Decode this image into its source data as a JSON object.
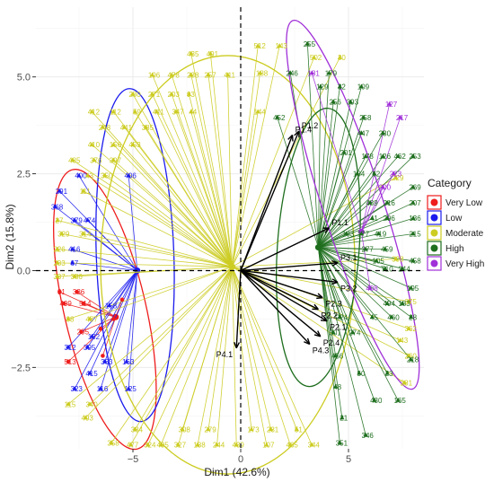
{
  "chart_data": {
    "type": "scatter",
    "subtype": "pca-biplot",
    "title": "",
    "xlabel": "Dim1 (42.6%)",
    "ylabel": "Dim2 (15.8%)",
    "xlim": [
      -9.5,
      8.5
    ],
    "ylim": [
      -4.6,
      6.8
    ],
    "x_ticks": [
      -5,
      0,
      5
    ],
    "y_ticks": [
      -2.5,
      0.0,
      2.5,
      5.0
    ],
    "x_tick_labels": [
      "−5",
      "0",
      "5"
    ],
    "y_tick_labels": [
      "−2.5",
      "0.0",
      "2.5",
      "5.0"
    ],
    "grid": true,
    "origin_lines": "dashed",
    "legend": {
      "title": "Category",
      "position": "right",
      "entries": [
        {
          "name": "Very Low",
          "color": "#ee1c1c"
        },
        {
          "name": "Low",
          "color": "#1a1aee"
        },
        {
          "name": "Moderate",
          "color": "#cccc22"
        },
        {
          "name": "High",
          "color": "#1e6e1e"
        },
        {
          "name": "Very High",
          "color": "#a030d8"
        }
      ]
    },
    "groups": [
      {
        "name": "Very Low",
        "color": "#ee1c1c",
        "centroid": [
          -5.8,
          -1.2
        ],
        "ellipse": {
          "cx": -6.3,
          "cy": -1.0,
          "rx": 1.9,
          "ry": 3.7,
          "angle": 13
        },
        "points": [
          {
            "label": "91",
            "x": -8.4,
            "y": -0.55
          },
          {
            "label": "336",
            "x": -7.6,
            "y": -0.55
          },
          {
            "label": "499",
            "x": -8.2,
            "y": -0.85
          },
          {
            "label": "514",
            "x": -7.3,
            "y": -0.85
          },
          {
            "label": "295",
            "x": -7.4,
            "y": -1.58
          },
          {
            "label": "513",
            "x": -8.0,
            "y": -2.35
          },
          {
            "label": "",
            "x": -5.9,
            "y": -1.25
          },
          {
            "label": "",
            "x": -5.5,
            "y": -0.75
          },
          {
            "label": "",
            "x": -6.5,
            "y": -1.5
          },
          {
            "label": "",
            "x": -6.4,
            "y": -2.2
          }
        ]
      },
      {
        "name": "Low",
        "color": "#1a1aee",
        "centroid": [
          -4.8,
          0.0
        ],
        "ellipse": {
          "cx": -4.9,
          "cy": 0.4,
          "rx": 1.8,
          "ry": 4.3,
          "angle": 2
        },
        "points": [
          {
            "label": "400",
            "x": -7.5,
            "y": 2.45
          },
          {
            "label": "406",
            "x": -5.2,
            "y": 2.45
          },
          {
            "label": "291",
            "x": -8.4,
            "y": 2.05
          },
          {
            "label": "368",
            "x": -8.6,
            "y": 1.65
          },
          {
            "label": "379",
            "x": -7.7,
            "y": 1.3
          },
          {
            "label": "474",
            "x": -7.1,
            "y": 1.3
          },
          {
            "label": "416",
            "x": -7.8,
            "y": 0.55
          },
          {
            "label": "67",
            "x": -7.8,
            "y": 0.2
          },
          {
            "label": "158",
            "x": -6.1,
            "y": -0.9
          },
          {
            "label": "132",
            "x": -6.9,
            "y": -1.7
          },
          {
            "label": "312",
            "x": -8.0,
            "y": -1.98
          },
          {
            "label": "395",
            "x": -7.1,
            "y": -1.98
          },
          {
            "label": "363",
            "x": -6.3,
            "y": -2.35
          },
          {
            "label": "163",
            "x": -5.3,
            "y": -2.35
          },
          {
            "label": "415",
            "x": -7.0,
            "y": -2.65
          },
          {
            "label": "323",
            "x": -7.7,
            "y": -3.05
          },
          {
            "label": "116",
            "x": -6.5,
            "y": -3.05
          },
          {
            "label": "125",
            "x": -5.2,
            "y": -3.05
          }
        ]
      },
      {
        "name": "Moderate",
        "color": "#cccc22",
        "centroid": [
          -0.4,
          0.1
        ],
        "ellipse": {
          "cx": -0.6,
          "cy": 0.15,
          "rx": 5.9,
          "ry": 5.4,
          "angle": 0
        },
        "points": [
          {
            "label": "435",
            "x": -2.3,
            "y": 5.6
          },
          {
            "label": "491",
            "x": -1.4,
            "y": 5.6
          },
          {
            "label": "196",
            "x": -4.1,
            "y": 5.05
          },
          {
            "label": "478",
            "x": -3.2,
            "y": 5.05
          },
          {
            "label": "238",
            "x": -2.3,
            "y": 5.05
          },
          {
            "label": "257",
            "x": -1.5,
            "y": 5.05
          },
          {
            "label": "411",
            "x": -0.6,
            "y": 5.05
          },
          {
            "label": "280",
            "x": -5.0,
            "y": 4.55
          },
          {
            "label": "271",
            "x": -4.1,
            "y": 4.55
          },
          {
            "label": "203",
            "x": -3.2,
            "y": 4.55
          },
          {
            "label": "93",
            "x": -2.4,
            "y": 4.55
          },
          {
            "label": "412",
            "x": -6.9,
            "y": 4.1
          },
          {
            "label": "112",
            "x": -5.9,
            "y": 4.1
          },
          {
            "label": "59",
            "x": -4.9,
            "y": 4.1
          },
          {
            "label": "411",
            "x": -3.9,
            "y": 4.1
          },
          {
            "label": "347",
            "x": -3.0,
            "y": 4.1
          },
          {
            "label": "44",
            "x": -2.3,
            "y": 4.1
          },
          {
            "label": "248",
            "x": -6.4,
            "y": 3.7
          },
          {
            "label": "441",
            "x": -5.4,
            "y": 3.7
          },
          {
            "label": "385",
            "x": -4.4,
            "y": 3.7
          },
          {
            "label": "410",
            "x": -6.9,
            "y": 3.25
          },
          {
            "label": "156",
            "x": -5.9,
            "y": 3.25
          },
          {
            "label": "453",
            "x": -5.0,
            "y": 3.25
          },
          {
            "label": "485",
            "x": -7.8,
            "y": 2.85
          },
          {
            "label": "376",
            "x": -6.8,
            "y": 2.85
          },
          {
            "label": "397",
            "x": -5.9,
            "y": 2.85
          },
          {
            "label": "43",
            "x": -7.1,
            "y": 2.45
          },
          {
            "label": "350",
            "x": -6.3,
            "y": 2.45
          },
          {
            "label": "111",
            "x": -7.3,
            "y": 2.05
          },
          {
            "label": "27",
            "x": -8.5,
            "y": 1.3
          },
          {
            "label": "329",
            "x": -8.3,
            "y": 0.95
          },
          {
            "label": "314",
            "x": -7.3,
            "y": 0.95
          },
          {
            "label": "226",
            "x": -8.5,
            "y": 0.55
          },
          {
            "label": "283",
            "x": -8.5,
            "y": 0.2
          },
          {
            "label": "337",
            "x": -8.5,
            "y": -0.15
          },
          {
            "label": "386",
            "x": -7.7,
            "y": -0.15
          },
          {
            "label": "88",
            "x": -8.0,
            "y": -1.25
          },
          {
            "label": "457",
            "x": -7.0,
            "y": -1.25
          },
          {
            "label": "115",
            "x": -8.0,
            "y": -3.45
          },
          {
            "label": "340",
            "x": -7.0,
            "y": -3.45
          },
          {
            "label": "493",
            "x": -7.2,
            "y": -3.8
          },
          {
            "label": "358",
            "x": -6.0,
            "y": -4.45
          },
          {
            "label": "334",
            "x": -4.9,
            "y": -4.1
          },
          {
            "label": "477",
            "x": -5.1,
            "y": -4.5
          },
          {
            "label": "324",
            "x": -4.3,
            "y": -4.5
          },
          {
            "label": "495",
            "x": -3.7,
            "y": -4.5
          },
          {
            "label": "327",
            "x": -2.9,
            "y": -4.5
          },
          {
            "label": "138",
            "x": -2.0,
            "y": -4.5
          },
          {
            "label": "244",
            "x": -1.1,
            "y": -4.5
          },
          {
            "label": "439",
            "x": -0.2,
            "y": -4.5
          },
          {
            "label": "107",
            "x": 1.2,
            "y": -4.5
          },
          {
            "label": "465",
            "x": 2.3,
            "y": -4.5
          },
          {
            "label": "344",
            "x": 3.3,
            "y": -4.5
          },
          {
            "label": "308",
            "x": -2.7,
            "y": -4.1
          },
          {
            "label": "279",
            "x": -1.5,
            "y": -4.1
          },
          {
            "label": "173",
            "x": 0.5,
            "y": -4.1
          },
          {
            "label": "231",
            "x": 1.4,
            "y": -4.1
          },
          {
            "label": "51",
            "x": 2.6,
            "y": -4.1
          },
          {
            "label": "512",
            "x": 0.8,
            "y": 5.8
          },
          {
            "label": "143",
            "x": 1.8,
            "y": 5.8
          },
          {
            "label": "188",
            "x": 0.9,
            "y": 5.1
          },
          {
            "label": "30",
            "x": 4.6,
            "y": 5.5
          },
          {
            "label": "502",
            "x": 3.4,
            "y": 5.5
          },
          {
            "label": "144",
            "x": 0.8,
            "y": 4.1
          },
          {
            "label": "229",
            "x": 7.2,
            "y": 2.4
          },
          {
            "label": "398",
            "x": 7.2,
            "y": 0.3
          },
          {
            "label": "375",
            "x": 7.8,
            "y": -0.8
          },
          {
            "label": "362",
            "x": 7.8,
            "y": -1.5
          },
          {
            "label": "143",
            "x": 7.4,
            "y": -1.8
          },
          {
            "label": "281",
            "x": 7.6,
            "y": -2.9
          },
          {
            "label": "260",
            "x": 7.8,
            "y": -2.2
          }
        ]
      },
      {
        "name": "High",
        "color": "#1e6e1e",
        "centroid": [
          3.6,
          0.6
        ],
        "ellipse": {
          "cx": 3.6,
          "cy": 0.6,
          "rx": 1.9,
          "ry": 3.6,
          "angle": -4
        },
        "points": [
          {
            "label": "255",
            "x": 3.1,
            "y": 5.85
          },
          {
            "label": "246",
            "x": 2.3,
            "y": 5.1
          },
          {
            "label": "179",
            "x": 4.1,
            "y": 5.1
          },
          {
            "label": "129",
            "x": 3.7,
            "y": 4.75
          },
          {
            "label": "32",
            "x": 4.6,
            "y": 4.75
          },
          {
            "label": "109",
            "x": 5.6,
            "y": 4.75
          },
          {
            "label": "256",
            "x": 4.3,
            "y": 4.35
          },
          {
            "label": "393",
            "x": 5.1,
            "y": 4.35
          },
          {
            "label": "452",
            "x": 1.7,
            "y": 3.95
          },
          {
            "label": "258",
            "x": 5.7,
            "y": 3.95
          },
          {
            "label": "447",
            "x": 5.6,
            "y": 3.55
          },
          {
            "label": "230",
            "x": 6.6,
            "y": 3.55
          },
          {
            "label": "201",
            "x": 4.8,
            "y": 3.05
          },
          {
            "label": "178",
            "x": 5.8,
            "y": 2.95
          },
          {
            "label": "126",
            "x": 6.6,
            "y": 2.95
          },
          {
            "label": "462",
            "x": 7.3,
            "y": 2.95
          },
          {
            "label": "253",
            "x": 8.0,
            "y": 2.95
          },
          {
            "label": "184",
            "x": 5.4,
            "y": 2.5
          },
          {
            "label": "62",
            "x": 6.2,
            "y": 2.5
          },
          {
            "label": "269",
            "x": 8.0,
            "y": 2.15
          },
          {
            "label": "489",
            "x": 6.0,
            "y": 1.75
          },
          {
            "label": "216",
            "x": 6.8,
            "y": 1.75
          },
          {
            "label": "207",
            "x": 8.0,
            "y": 1.75
          },
          {
            "label": "41",
            "x": 6.1,
            "y": 1.35
          },
          {
            "label": "296",
            "x": 6.8,
            "y": 1.35
          },
          {
            "label": "136",
            "x": 8.0,
            "y": 1.35
          },
          {
            "label": "183",
            "x": 4.9,
            "y": 0.95
          },
          {
            "label": "177",
            "x": 5.6,
            "y": 0.95
          },
          {
            "label": "419",
            "x": 6.4,
            "y": 0.95
          },
          {
            "label": "215",
            "x": 8.0,
            "y": 0.95
          },
          {
            "label": "277",
            "x": 5.8,
            "y": 0.55
          },
          {
            "label": "459",
            "x": 6.7,
            "y": 0.55
          },
          {
            "label": "105",
            "x": 6.3,
            "y": 0.25
          },
          {
            "label": "458",
            "x": 8.0,
            "y": 0.25
          },
          {
            "label": "195",
            "x": 7.9,
            "y": -0.45
          },
          {
            "label": "494",
            "x": 6.8,
            "y": -0.85
          },
          {
            "label": "183",
            "x": 7.5,
            "y": -0.85
          },
          {
            "label": "460",
            "x": 7.0,
            "y": -1.2
          },
          {
            "label": "28",
            "x": 7.9,
            "y": -1.2
          },
          {
            "label": "224",
            "x": 4.6,
            "y": -1.2
          },
          {
            "label": "45",
            "x": 6.1,
            "y": -1.2
          },
          {
            "label": "301",
            "x": 4.3,
            "y": -1.6
          },
          {
            "label": "274",
            "x": 5.2,
            "y": -1.6
          },
          {
            "label": "218",
            "x": 7.9,
            "y": -2.3
          },
          {
            "label": "50",
            "x": 5.5,
            "y": -2.65
          },
          {
            "label": "23",
            "x": 6.8,
            "y": -2.65
          },
          {
            "label": "430",
            "x": 6.2,
            "y": -3.35
          },
          {
            "label": "165",
            "x": 7.3,
            "y": -3.35
          },
          {
            "label": "346",
            "x": 5.8,
            "y": -4.25
          },
          {
            "label": "351",
            "x": 4.6,
            "y": -4.45
          },
          {
            "label": "48",
            "x": 4.4,
            "y": -3.0
          },
          {
            "label": "456",
            "x": 4.4,
            "y": -2.2
          },
          {
            "label": "21",
            "x": 4.7,
            "y": -3.8
          },
          {
            "label": "T10",
            "x": 6.7,
            "y": 0.05
          },
          {
            "label": "244",
            "x": 7.5,
            "y": 0.05
          }
        ]
      },
      {
        "name": "Very High",
        "color": "#a030d8",
        "centroid": [
          5.6,
          1.0
        ],
        "ellipse": {
          "cx": 5.2,
          "cy": 1.7,
          "rx": 1.4,
          "ry": 5.0,
          "angle": 18
        },
        "points": [
          {
            "label": "181",
            "x": 3.3,
            "y": 5.1
          },
          {
            "label": "127",
            "x": 6.9,
            "y": 4.3
          },
          {
            "label": "217",
            "x": 7.4,
            "y": 3.95
          },
          {
            "label": "223",
            "x": 7.1,
            "y": 2.5
          },
          {
            "label": "200",
            "x": 6.6,
            "y": 2.15
          },
          {
            "label": "408",
            "x": 6.0,
            "y": -0.45
          }
        ]
      }
    ],
    "variables": [
      {
        "label": "P1.2",
        "x": 2.7,
        "y": 3.6
      },
      {
        "label": "P1.4",
        "x": 2.4,
        "y": 3.5
      },
      {
        "label": "P1.1",
        "x": 4.1,
        "y": 1.1
      },
      {
        "label": "P3.1",
        "x": 4.5,
        "y": 0.2
      },
      {
        "label": "P3.2",
        "x": 4.5,
        "y": -0.3
      },
      {
        "label": "P2.3",
        "x": 3.8,
        "y": -0.7
      },
      {
        "label": "P2.2",
        "x": 3.6,
        "y": -1.0
      },
      {
        "label": "P2.1",
        "x": 4.0,
        "y": -1.3
      },
      {
        "label": "P2.4",
        "x": 3.7,
        "y": -1.7
      },
      {
        "label": "P4.3",
        "x": 3.2,
        "y": -1.9
      },
      {
        "label": "P4.1",
        "x": -0.2,
        "y": -2.0
      }
    ]
  }
}
